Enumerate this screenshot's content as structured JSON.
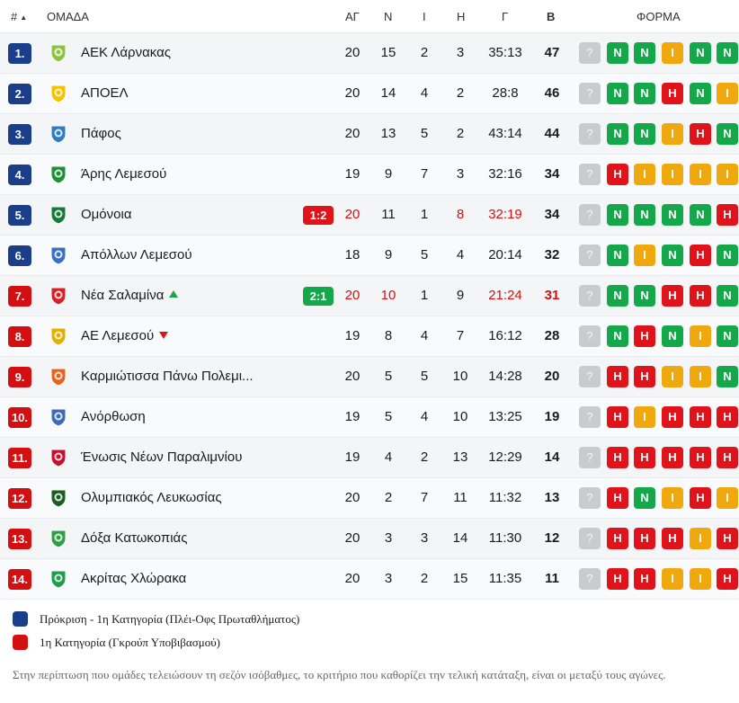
{
  "header": {
    "pos_label": "#",
    "team_label": "ΟΜΑΔΑ",
    "played_label": "ΑΓ",
    "wins_label": "Ν",
    "draws_label": "Ι",
    "losses_label": "Η",
    "goals_label": "Γ",
    "points_label": "Β",
    "form_label": "ΦΟΡΜΑ",
    "sort_icon": "caret-up-icon"
  },
  "rows": [
    {
      "pos": "1.",
      "zone": "blue",
      "team": "ΑΕΚ Λάρνακας",
      "logo_color": "#8bc53f",
      "live": "",
      "trend": "",
      "ag": "20",
      "n": "15",
      "i": "2",
      "h": "3",
      "g": "35:13",
      "b": "47",
      "hl": false,
      "form": [
        "?",
        "N",
        "N",
        "I",
        "N",
        "N"
      ]
    },
    {
      "pos": "2.",
      "zone": "blue",
      "team": "ΑΠΟΕΛ",
      "logo_color": "#f6c200",
      "live": "",
      "trend": "",
      "ag": "20",
      "n": "14",
      "i": "4",
      "h": "2",
      "g": "28:8",
      "b": "46",
      "hl": false,
      "form": [
        "?",
        "N",
        "N",
        "H",
        "N",
        "I"
      ]
    },
    {
      "pos": "3.",
      "zone": "blue",
      "team": "Πάφος",
      "logo_color": "#2e7cc4",
      "live": "",
      "trend": "",
      "ag": "20",
      "n": "13",
      "i": "5",
      "h": "2",
      "g": "43:14",
      "b": "44",
      "hl": false,
      "form": [
        "?",
        "N",
        "N",
        "I",
        "H",
        "N"
      ]
    },
    {
      "pos": "4.",
      "zone": "blue",
      "team": "Άρης Λεμεσού",
      "logo_color": "#1f8f3a",
      "live": "",
      "trend": "",
      "ag": "19",
      "n": "9",
      "i": "7",
      "h": "3",
      "g": "32:16",
      "b": "34",
      "hl": false,
      "form": [
        "?",
        "H",
        "I",
        "I",
        "I",
        "I"
      ]
    },
    {
      "pos": "5.",
      "zone": "blue",
      "team": "Ομόνοια",
      "logo_color": "#167a37",
      "live": "1:2",
      "live_color": "red",
      "trend": "",
      "ag": "20",
      "n": "11",
      "i": "1",
      "h": "8",
      "g": "32:19",
      "b": "34",
      "hl": true,
      "hl_cols": [
        "ag",
        "h",
        "g"
      ],
      "form": [
        "?",
        "N",
        "N",
        "N",
        "N",
        "H"
      ]
    },
    {
      "pos": "6.",
      "zone": "blue",
      "team": "Απόλλων Λεμεσού",
      "logo_color": "#3a6fc4",
      "live": "",
      "trend": "",
      "ag": "18",
      "n": "9",
      "i": "5",
      "h": "4",
      "g": "20:14",
      "b": "32",
      "hl": false,
      "form": [
        "?",
        "N",
        "I",
        "N",
        "H",
        "N"
      ]
    },
    {
      "pos": "7.",
      "zone": "red",
      "team": "Νέα Σαλαμίνα",
      "logo_color": "#d72027",
      "live": "2:1",
      "live_color": "green",
      "trend": "up",
      "ag": "20",
      "n": "10",
      "i": "1",
      "h": "9",
      "g": "21:24",
      "b": "31",
      "hl": true,
      "hl_cols": [
        "ag",
        "n",
        "g",
        "b"
      ],
      "form": [
        "?",
        "N",
        "N",
        "H",
        "H",
        "N"
      ]
    },
    {
      "pos": "8.",
      "zone": "red",
      "team": "ΑΕ Λεμεσού",
      "logo_color": "#e2b100",
      "live": "",
      "trend": "down",
      "ag": "19",
      "n": "8",
      "i": "4",
      "h": "7",
      "g": "16:12",
      "b": "28",
      "hl": false,
      "form": [
        "?",
        "N",
        "H",
        "N",
        "I",
        "N"
      ]
    },
    {
      "pos": "9.",
      "zone": "red",
      "team": "Καρμιώτισσα Πάνω Πολεμι...",
      "logo_color": "#e8641b",
      "live": "",
      "trend": "",
      "ag": "20",
      "n": "5",
      "i": "5",
      "h": "10",
      "g": "14:28",
      "b": "20",
      "hl": false,
      "form": [
        "?",
        "H",
        "H",
        "I",
        "I",
        "N"
      ]
    },
    {
      "pos": "10.",
      "zone": "red",
      "team": "Ανόρθωση",
      "logo_color": "#3d6bb5",
      "live": "",
      "trend": "",
      "ag": "19",
      "n": "5",
      "i": "4",
      "h": "10",
      "g": "13:25",
      "b": "19",
      "hl": false,
      "form": [
        "?",
        "H",
        "I",
        "H",
        "H",
        "H"
      ]
    },
    {
      "pos": "11.",
      "zone": "red",
      "team": "Ένωσις Νέων Παραλιμνίου",
      "logo_color": "#c8102e",
      "live": "",
      "trend": "",
      "ag": "19",
      "n": "4",
      "i": "2",
      "h": "13",
      "g": "12:29",
      "b": "14",
      "hl": false,
      "form": [
        "?",
        "H",
        "H",
        "H",
        "H",
        "H"
      ]
    },
    {
      "pos": "12.",
      "zone": "red",
      "team": "Ολυμπιακός Λευκωσίας",
      "logo_color": "#1b5e20",
      "live": "",
      "trend": "",
      "ag": "20",
      "n": "2",
      "i": "7",
      "h": "11",
      "g": "11:32",
      "b": "13",
      "hl": false,
      "form": [
        "?",
        "H",
        "N",
        "I",
        "H",
        "I"
      ]
    },
    {
      "pos": "13.",
      "zone": "red",
      "team": "Δόξα Κατωκοπιάς",
      "logo_color": "#2f9e44",
      "live": "",
      "trend": "",
      "ag": "20",
      "n": "3",
      "i": "3",
      "h": "14",
      "g": "11:30",
      "b": "12",
      "hl": false,
      "form": [
        "?",
        "H",
        "H",
        "H",
        "I",
        "H"
      ]
    },
    {
      "pos": "14.",
      "zone": "red",
      "team": "Ακρίτας Χλώρακα",
      "logo_color": "#1e9d4b",
      "live": "",
      "trend": "",
      "ag": "20",
      "n": "3",
      "i": "2",
      "h": "15",
      "g": "11:35",
      "b": "11",
      "hl": false,
      "form": [
        "?",
        "H",
        "H",
        "I",
        "I",
        "H"
      ]
    }
  ],
  "legend": [
    {
      "color": "blue",
      "text": "Πρόκριση - 1η Κατηγορία (Πλέι-Οφς Πρωταθλήματος)"
    },
    {
      "color": "red",
      "text": "1η Κατηγορία (Γκρούπ Υποβιβασμού)"
    }
  ],
  "note": "Στην περίπτωση που ομάδες τελειώσουν τη σεζόν ισόβαθμες, το κριτήριο που καθορίζει την τελική κατάταξη, είναι οι μεταξύ τους αγώνες.",
  "colors": {
    "zone_blue": "#1b3e8a",
    "zone_red": "#d30f12",
    "win": "#15a84a",
    "draw": "#f0a80f",
    "loss": "#e0121a",
    "upcoming": "#c9cbcf"
  }
}
